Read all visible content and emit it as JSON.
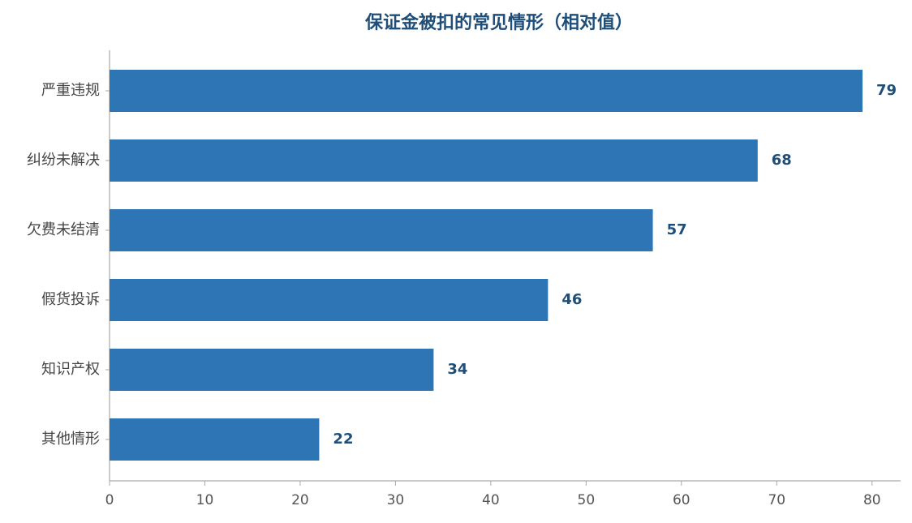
{
  "chart_data": {
    "type": "bar",
    "orientation": "horizontal",
    "title": "保证金被扣的常见情形（相对值）",
    "categories": [
      "严重违规",
      "纠纷未解决",
      "欠费未结清",
      "假货投诉",
      "知识产权",
      "其他情形"
    ],
    "values": [
      79,
      68,
      57,
      46,
      34,
      22
    ],
    "color": "#2e75b6",
    "xlim": [
      0,
      83
    ],
    "xticks": [
      0,
      10,
      20,
      30,
      40,
      50,
      60,
      70,
      80
    ],
    "grid": false
  }
}
